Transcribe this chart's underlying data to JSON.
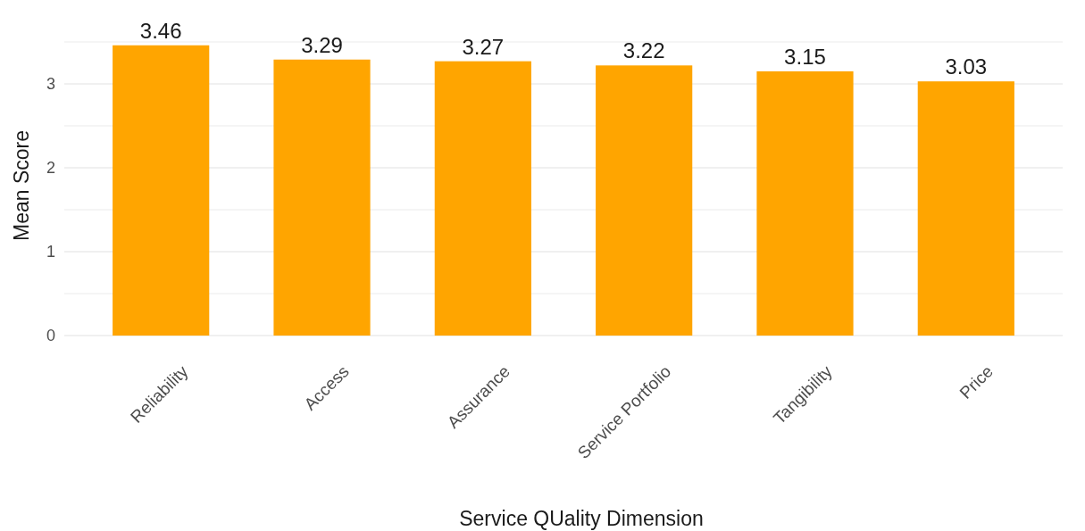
{
  "chart_data": {
    "type": "bar",
    "xlabel": "Service QUality Dimension",
    "ylabel": "Mean Score",
    "categories": [
      "Reliability",
      "Access",
      "Assurance",
      "Service Portfolio",
      "Tangibility",
      "Price"
    ],
    "values": [
      3.46,
      3.29,
      3.27,
      3.22,
      3.15,
      3.03
    ],
    "color": "#ffa500",
    "data_labels": true,
    "grid": "y",
    "ylim": [
      0,
      3.5
    ],
    "yticks": [
      0,
      {
        "value": 0.5,
        "label": null
      },
      1,
      {
        "value": 1.5,
        "label": null
      },
      2,
      {
        "value": 2.5,
        "label": null
      },
      3,
      {
        "value": 3.5,
        "label": null
      }
    ]
  }
}
